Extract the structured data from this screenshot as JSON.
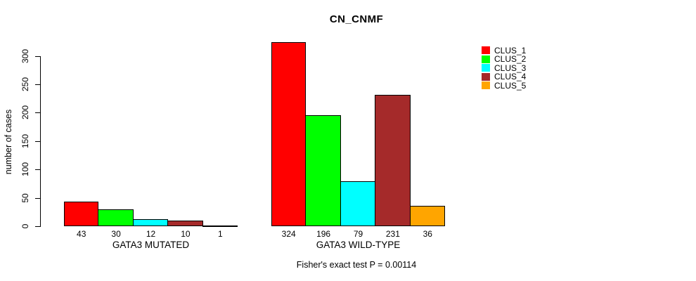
{
  "chart_data": {
    "type": "bar",
    "title": "CN_CNMF",
    "ylabel": "number of cases",
    "xlabel": "",
    "ylim": [
      0,
      300
    ],
    "yticks": [
      0,
      50,
      100,
      150,
      200,
      250,
      300
    ],
    "grid": false,
    "legend_position": "right",
    "categories": [
      "GATA3 MUTATED",
      "GATA3 WILD-TYPE"
    ],
    "groups": [
      {
        "label": "GATA3 MUTATED",
        "values": [
          43,
          30,
          12,
          10,
          1
        ],
        "value_labels": [
          "43",
          "30",
          "12",
          "10",
          "1"
        ]
      },
      {
        "label": "GATA3 WILD-TYPE",
        "values": [
          324,
          196,
          79,
          231,
          36
        ],
        "value_labels": [
          "324",
          "196",
          "79",
          "231",
          "36"
        ]
      }
    ],
    "series_colors": [
      "#FF0000",
      "#00FF00",
      "#00FFFF",
      "#A52A2A",
      "#FFA500"
    ],
    "legend": [
      {
        "label": "CLUS_1",
        "color": "#FF0000"
      },
      {
        "label": "CLUS_2",
        "color": "#00FF00"
      },
      {
        "label": "CLUS_3",
        "color": "#00FFFF"
      },
      {
        "label": "CLUS_4",
        "color": "#A52A2A"
      },
      {
        "label": "CLUS_5",
        "color": "#FFA500"
      }
    ],
    "annotation": "Fisher's exact test P = 0.00114"
  },
  "colors": {
    "axis": "#000000",
    "background": "#FFFFFF"
  }
}
